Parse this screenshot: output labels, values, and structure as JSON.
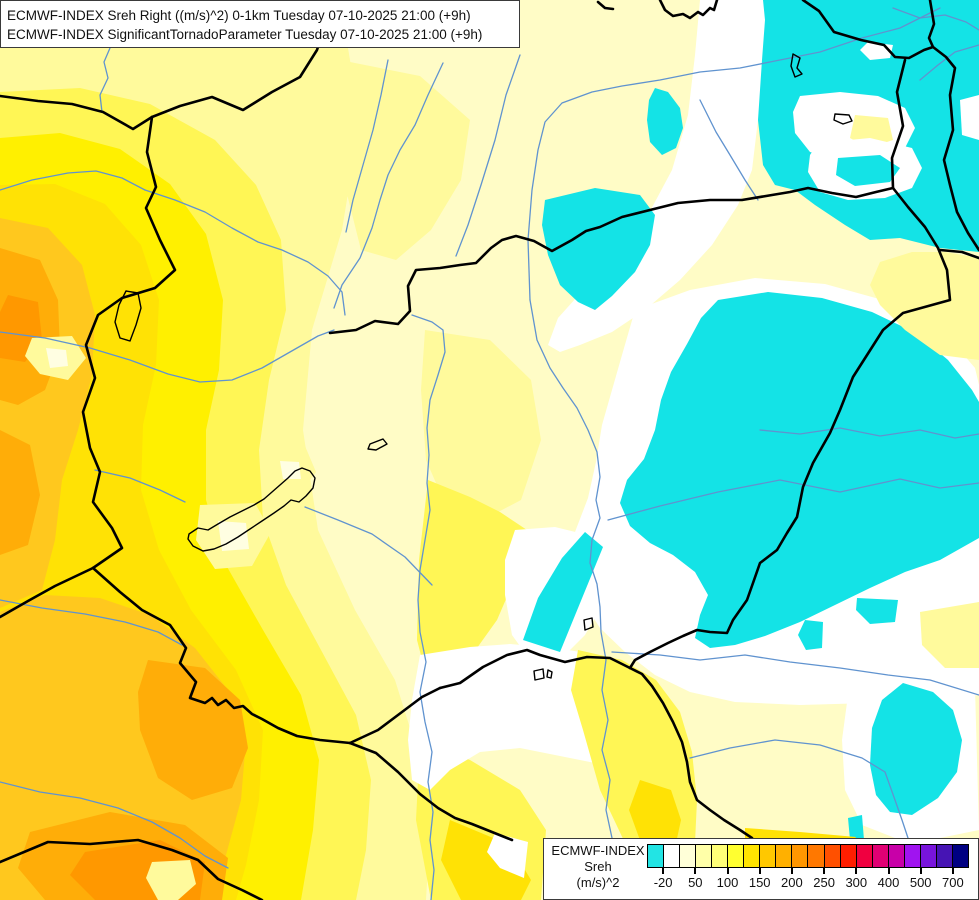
{
  "header": {
    "line1": "ECMWF-INDEX Sreh Right ((m/s)^2) 0-1km Tuesday 07-10-2025 21:00 (+9h)",
    "line2": "ECMWF-INDEX SignificantTornadoParameter Tuesday 07-10-2025 21:00 (+9h)"
  },
  "legend": {
    "title": "ECMWF-INDEX",
    "parameter": "Sreh",
    "unit": "(m/s)^2",
    "cell_colors": [
      "#22E4E4",
      "#FFFFFF",
      "#FFFFD8",
      "#FFFFA8",
      "#FFFF78",
      "#FFFF30",
      "#FFE400",
      "#FFC800",
      "#FFB000",
      "#FF9600",
      "#FF7800",
      "#FF5000",
      "#FF1E00",
      "#F00040",
      "#E10074",
      "#C800A8",
      "#A014F0",
      "#7814DC",
      "#4614B4",
      "#000082"
    ],
    "tick_labels": [
      "-20",
      "50",
      "100",
      "150",
      "200",
      "250",
      "300",
      "400",
      "500",
      "700"
    ],
    "tick_boundary_indices": [
      1,
      3,
      5,
      7,
      9,
      11,
      13,
      15,
      17,
      19
    ],
    "cells_total": 20
  },
  "map_colors": {
    "base": "#FFFCC6",
    "pale": "#FFFA9C",
    "lightYellow": "#FFF655",
    "yellow": "#FFF000",
    "gold": "#FFE205",
    "amber": "#FFC81E",
    "orange": "#FFAD08",
    "deepOrange": "#FF9800",
    "cyan": "#14E3E6",
    "white": "#FFFFFF",
    "creamSpot": "#FFFEE2",
    "river": "#6093CF",
    "border": "#000000"
  }
}
